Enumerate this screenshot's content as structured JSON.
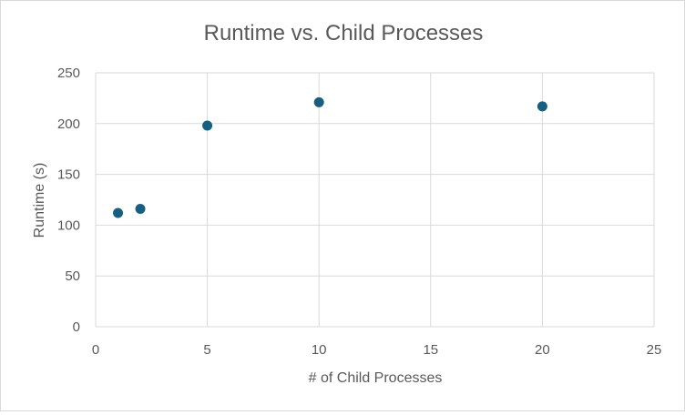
{
  "chart_data": {
    "type": "scatter",
    "title": "Runtime vs. Child Processes",
    "xlabel": "# of Child Processes",
    "ylabel": "Runtime (s)",
    "xlim": [
      0,
      25
    ],
    "ylim": [
      0,
      250
    ],
    "x_ticks": [
      0,
      5,
      10,
      15,
      20,
      25
    ],
    "y_ticks": [
      0,
      50,
      100,
      150,
      200,
      250
    ],
    "grid": true,
    "legend": "none",
    "series": [
      {
        "color": "#156082",
        "points": [
          {
            "x": 1,
            "y": 112
          },
          {
            "x": 2,
            "y": 116
          },
          {
            "x": 5,
            "y": 198
          },
          {
            "x": 10,
            "y": 221
          },
          {
            "x": 20,
            "y": 217
          }
        ]
      }
    ]
  }
}
